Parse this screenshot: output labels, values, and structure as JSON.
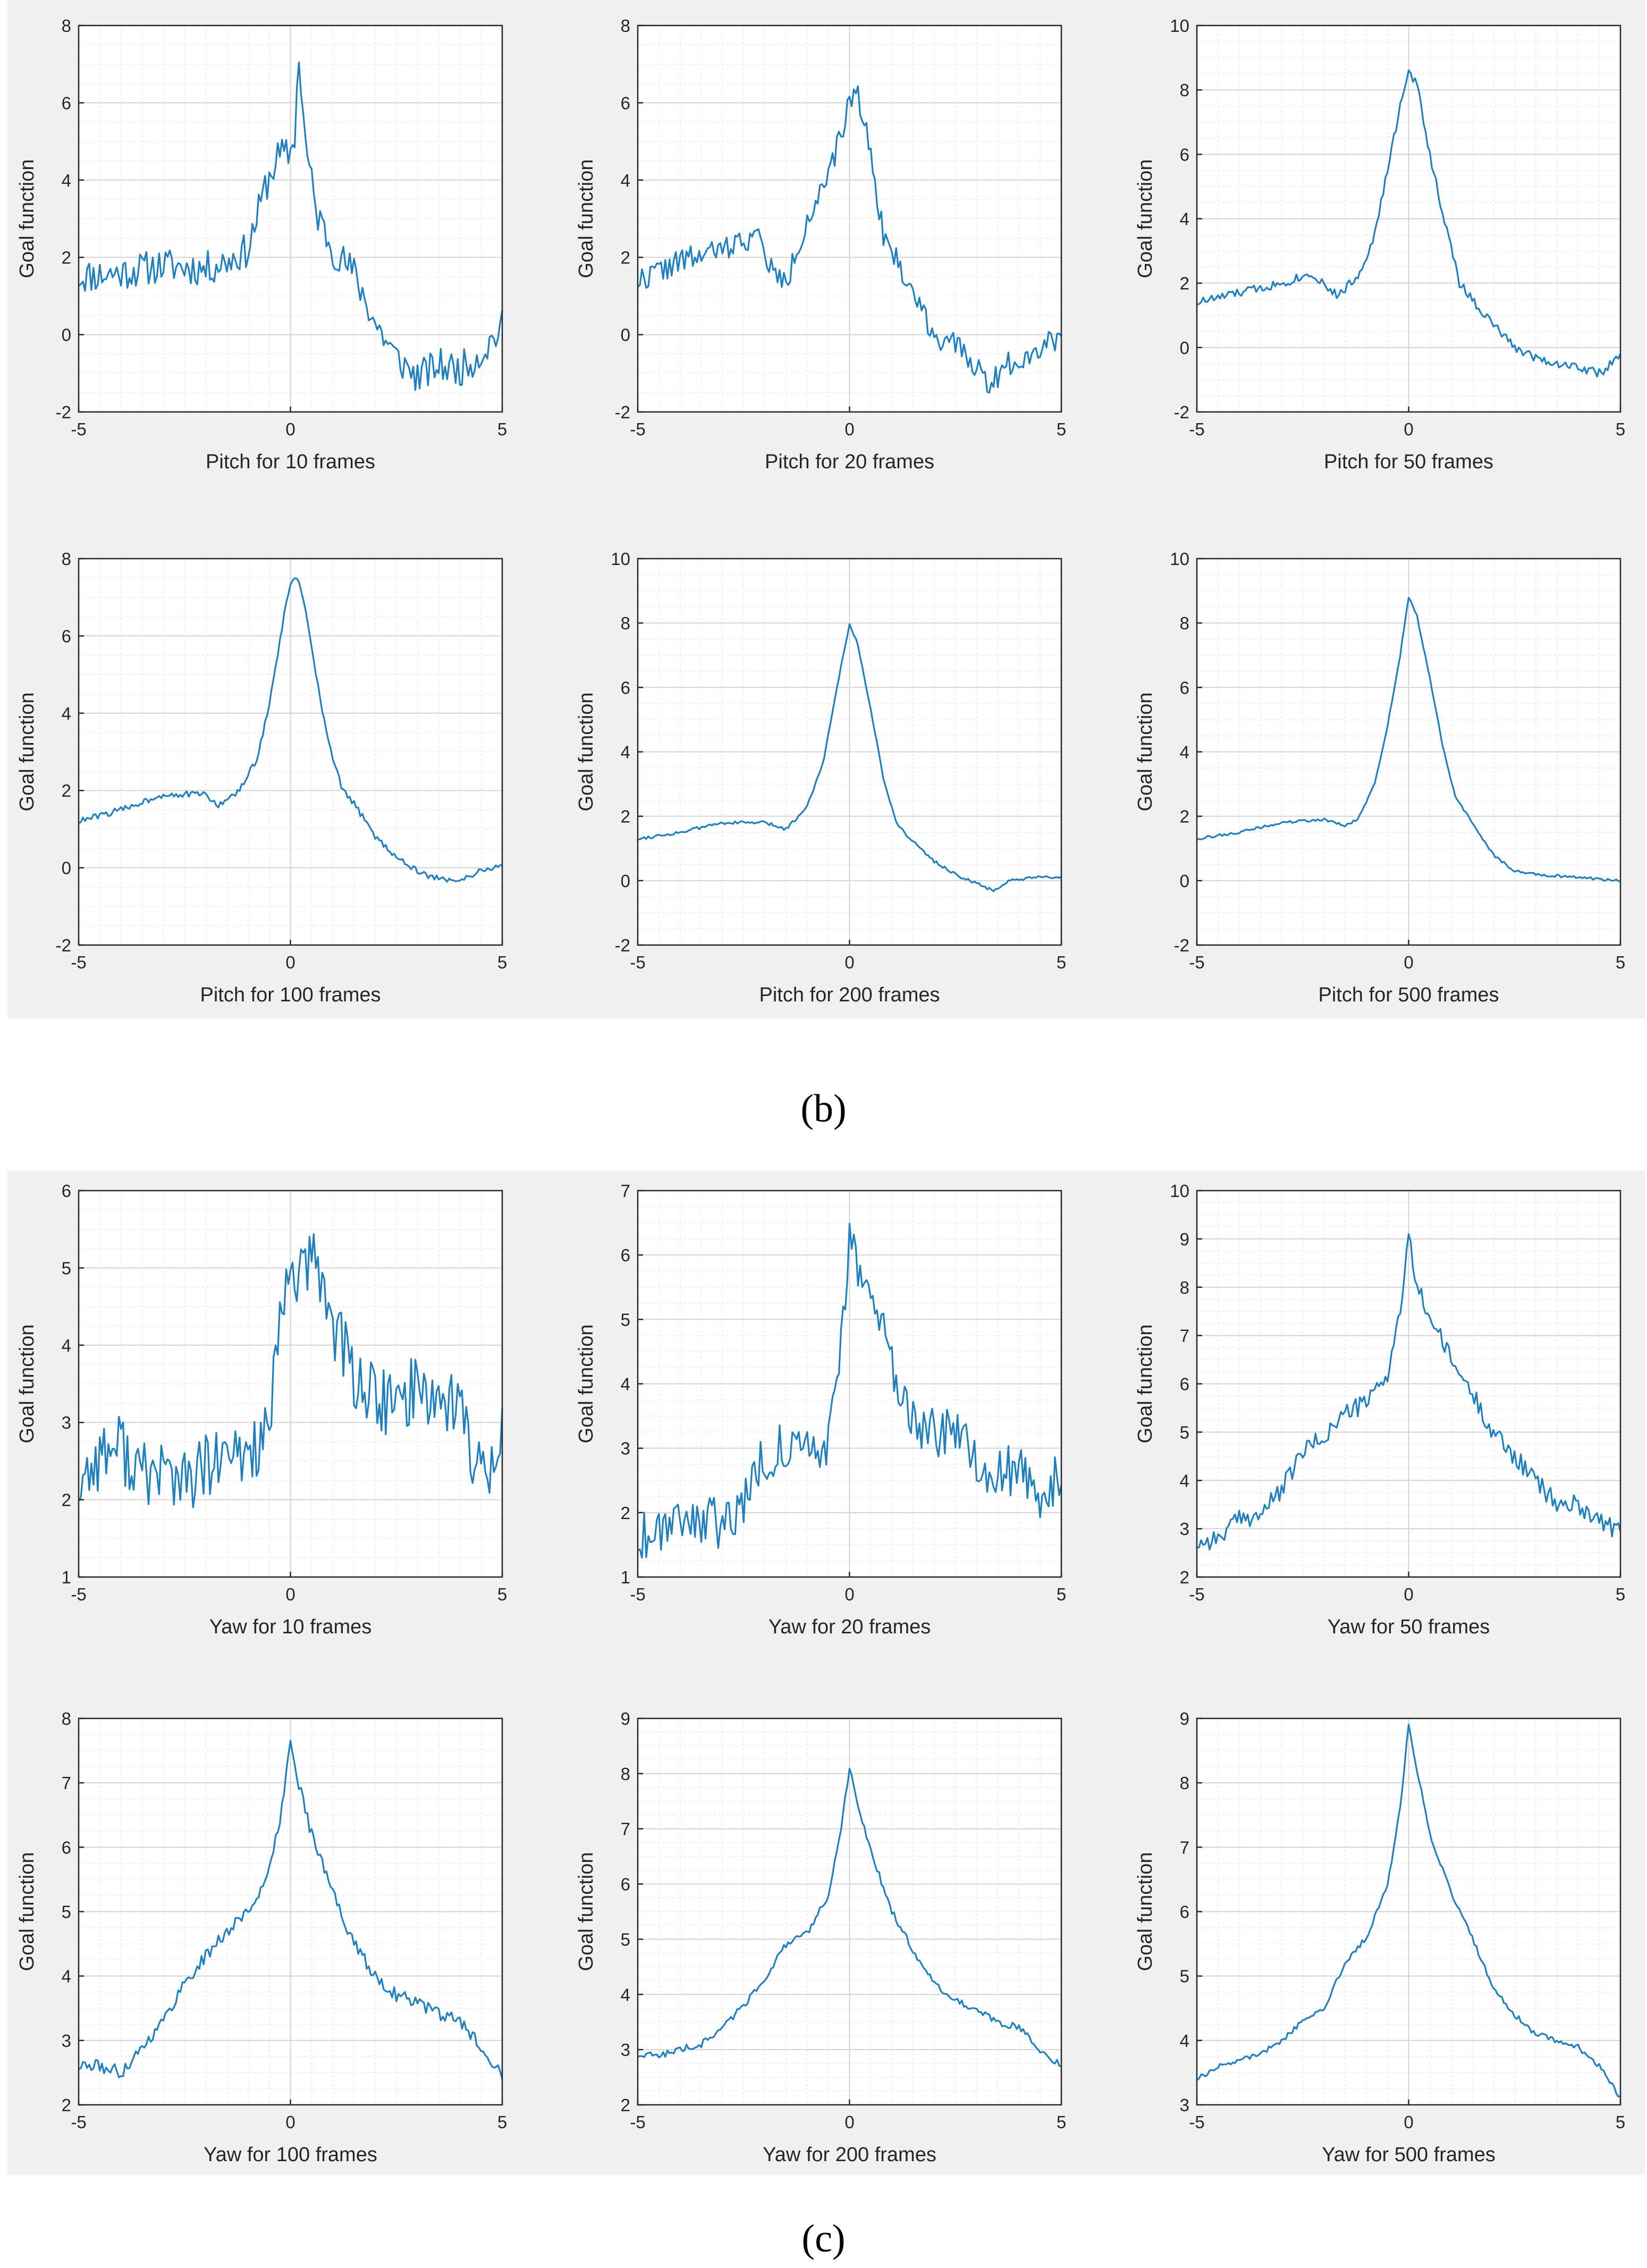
{
  "figure_labels": {
    "b": "(b)",
    "c": "(c)"
  },
  "colors": {
    "line": "#1f7fbf",
    "panel_bg": "#f0f0f0",
    "grid": "#d4d4d4",
    "axis": "#262626"
  },
  "chart_data": [
    {
      "type": "line",
      "panel": "b",
      "title": "",
      "xlabel": "Pitch for 10 frames",
      "ylabel": "Goal function",
      "xlim": [
        -5,
        5
      ],
      "ylim": [
        -2,
        8
      ],
      "xticks": [
        -5,
        0,
        5
      ],
      "yticks": [
        -2,
        0,
        2,
        4,
        6,
        8
      ],
      "grid": true,
      "noise": 0.45,
      "seed": 11,
      "anchors": [
        [
          -5,
          1.5
        ],
        [
          -4,
          1.6
        ],
        [
          -3,
          1.8
        ],
        [
          -2,
          1.7
        ],
        [
          -1.5,
          1.9
        ],
        [
          -1,
          2.2
        ],
        [
          -0.6,
          3.8
        ],
        [
          -0.3,
          4.6
        ],
        [
          0,
          4.7
        ],
        [
          0.1,
          5.2
        ],
        [
          0.2,
          7.2
        ],
        [
          0.35,
          5.0
        ],
        [
          0.6,
          3.2
        ],
        [
          1,
          2.2
        ],
        [
          1.5,
          1.6
        ],
        [
          2,
          0.3
        ],
        [
          2.5,
          -0.6
        ],
        [
          3,
          -1.1
        ],
        [
          3.5,
          -0.8
        ],
        [
          4,
          -0.9
        ],
        [
          4.5,
          -0.5
        ],
        [
          5,
          0.2
        ]
      ]
    },
    {
      "type": "line",
      "panel": "b",
      "title": "",
      "xlabel": "Pitch for 20 frames",
      "ylabel": "Goal function",
      "xlim": [
        -5,
        5
      ],
      "ylim": [
        -2,
        8
      ],
      "xticks": [
        -5,
        0,
        5
      ],
      "yticks": [
        -2,
        0,
        2,
        4,
        6,
        8
      ],
      "grid": true,
      "noise": 0.32,
      "seed": 22,
      "anchors": [
        [
          -5,
          1.4
        ],
        [
          -4,
          1.9
        ],
        [
          -3,
          2.2
        ],
        [
          -2.2,
          2.6
        ],
        [
          -1.8,
          1.6
        ],
        [
          -1.5,
          1.3
        ],
        [
          -1,
          3.0
        ],
        [
          -0.5,
          4.0
        ],
        [
          -0.2,
          5.2
        ],
        [
          0,
          6.0
        ],
        [
          0.15,
          6.4
        ],
        [
          0.3,
          5.8
        ],
        [
          0.6,
          4.0
        ],
        [
          0.8,
          2.6
        ],
        [
          1.2,
          1.7
        ],
        [
          1.6,
          0.9
        ],
        [
          2,
          0.0
        ],
        [
          2.5,
          -0.3
        ],
        [
          3,
          -0.8
        ],
        [
          3.3,
          -1.3
        ],
        [
          3.7,
          -0.8
        ],
        [
          4.2,
          -0.5
        ],
        [
          5,
          0.0
        ]
      ]
    },
    {
      "type": "line",
      "panel": "b",
      "title": "",
      "xlabel": "Pitch for 50 frames",
      "ylabel": "Goal function",
      "xlim": [
        -5,
        5
      ],
      "ylim": [
        -2,
        10
      ],
      "xticks": [
        -5,
        0,
        5
      ],
      "yticks": [
        -2,
        0,
        2,
        4,
        6,
        8,
        10
      ],
      "grid": true,
      "noise": 0.14,
      "seed": 33,
      "anchors": [
        [
          -5,
          1.4
        ],
        [
          -4,
          1.7
        ],
        [
          -3,
          2.0
        ],
        [
          -2.3,
          2.3
        ],
        [
          -2,
          2.0
        ],
        [
          -1.7,
          1.6
        ],
        [
          -1.2,
          2.2
        ],
        [
          -0.8,
          3.5
        ],
        [
          -0.5,
          5.5
        ],
        [
          -0.2,
          7.5
        ],
        [
          0,
          8.5
        ],
        [
          0.2,
          8.2
        ],
        [
          0.5,
          6.0
        ],
        [
          0.8,
          4.2
        ],
        [
          1.2,
          2.0
        ],
        [
          1.8,
          1.0
        ],
        [
          2.5,
          0.0
        ],
        [
          3,
          -0.3
        ],
        [
          3.5,
          -0.5
        ],
        [
          4,
          -0.6
        ],
        [
          4.5,
          -0.8
        ],
        [
          5,
          -0.3
        ]
      ]
    },
    {
      "type": "line",
      "panel": "b",
      "title": "",
      "xlabel": "Pitch for 100 frames",
      "ylabel": "Goal function",
      "xlim": [
        -5,
        5
      ],
      "ylim": [
        -2,
        8
      ],
      "xticks": [
        -5,
        0,
        5
      ],
      "yticks": [
        -2,
        0,
        2,
        4,
        6,
        8
      ],
      "grid": true,
      "noise": 0.08,
      "seed": 44,
      "anchors": [
        [
          -5,
          1.2
        ],
        [
          -4,
          1.5
        ],
        [
          -3,
          1.9
        ],
        [
          -2,
          1.9
        ],
        [
          -1.7,
          1.6
        ],
        [
          -1.2,
          2.0
        ],
        [
          -0.8,
          2.8
        ],
        [
          -0.5,
          4.2
        ],
        [
          -0.2,
          6.2
        ],
        [
          0,
          7.4
        ],
        [
          0.15,
          7.5
        ],
        [
          0.3,
          7.0
        ],
        [
          0.6,
          5.0
        ],
        [
          0.9,
          3.2
        ],
        [
          1.2,
          2.1
        ],
        [
          1.6,
          1.5
        ],
        [
          2,
          0.8
        ],
        [
          2.5,
          0.3
        ],
        [
          3,
          -0.1
        ],
        [
          3.5,
          -0.3
        ],
        [
          4,
          -0.3
        ],
        [
          4.5,
          -0.1
        ],
        [
          5,
          0.1
        ]
      ]
    },
    {
      "type": "line",
      "panel": "b",
      "title": "",
      "xlabel": "Pitch for 200 frames",
      "ylabel": "Goal function",
      "xlim": [
        -5,
        5
      ],
      "ylim": [
        -2,
        10
      ],
      "xticks": [
        -5,
        0,
        5
      ],
      "yticks": [
        -2,
        0,
        2,
        4,
        6,
        8,
        10
      ],
      "grid": true,
      "noise": 0.05,
      "seed": 55,
      "anchors": [
        [
          -5,
          1.3
        ],
        [
          -4,
          1.5
        ],
        [
          -3,
          1.8
        ],
        [
          -2,
          1.8
        ],
        [
          -1.5,
          1.6
        ],
        [
          -1,
          2.3
        ],
        [
          -0.6,
          3.8
        ],
        [
          -0.3,
          6.0
        ],
        [
          0,
          8.0
        ],
        [
          0.2,
          7.3
        ],
        [
          0.5,
          5.3
        ],
        [
          0.8,
          3.2
        ],
        [
          1.1,
          1.8
        ],
        [
          1.5,
          1.2
        ],
        [
          2,
          0.6
        ],
        [
          2.5,
          0.2
        ],
        [
          3,
          -0.1
        ],
        [
          3.4,
          -0.3
        ],
        [
          3.8,
          0.0
        ],
        [
          4.5,
          0.1
        ],
        [
          5,
          0.1
        ]
      ]
    },
    {
      "type": "line",
      "panel": "b",
      "title": "",
      "xlabel": "Pitch for 500 frames",
      "ylabel": "Goal function",
      "xlim": [
        -5,
        5
      ],
      "ylim": [
        -2,
        10
      ],
      "xticks": [
        -5,
        0,
        5
      ],
      "yticks": [
        -2,
        0,
        2,
        4,
        6,
        8,
        10
      ],
      "grid": true,
      "noise": 0.04,
      "seed": 66,
      "anchors": [
        [
          -5,
          1.3
        ],
        [
          -4,
          1.5
        ],
        [
          -3,
          1.8
        ],
        [
          -2,
          1.9
        ],
        [
          -1.5,
          1.7
        ],
        [
          -1.2,
          1.9
        ],
        [
          -0.8,
          3.0
        ],
        [
          -0.5,
          4.8
        ],
        [
          -0.2,
          7.0
        ],
        [
          0,
          8.8
        ],
        [
          0.2,
          8.2
        ],
        [
          0.5,
          6.3
        ],
        [
          0.8,
          4.2
        ],
        [
          1.1,
          2.6
        ],
        [
          1.6,
          1.6
        ],
        [
          2,
          0.8
        ],
        [
          2.5,
          0.3
        ],
        [
          3,
          0.2
        ],
        [
          4,
          0.1
        ],
        [
          5,
          0.0
        ]
      ]
    },
    {
      "type": "line",
      "panel": "c",
      "title": "",
      "xlabel": "Yaw for 10 frames",
      "ylabel": "Goal function",
      "xlim": [
        -5,
        5
      ],
      "ylim": [
        1,
        6
      ],
      "xticks": [
        -5,
        0,
        5
      ],
      "yticks": [
        1,
        2,
        3,
        4,
        5,
        6
      ],
      "grid": true,
      "noise": 0.45,
      "seed": 77,
      "anchors": [
        [
          -5,
          2.2
        ],
        [
          -4.5,
          2.6
        ],
        [
          -4,
          2.7
        ],
        [
          -3.5,
          2.3
        ],
        [
          -3,
          2.4
        ],
        [
          -2.5,
          2.2
        ],
        [
          -2,
          2.4
        ],
        [
          -1.5,
          2.5
        ],
        [
          -1,
          2.6
        ],
        [
          -0.5,
          2.9
        ],
        [
          -0.2,
          4.4
        ],
        [
          0,
          5.0
        ],
        [
          0.3,
          4.9
        ],
        [
          0.6,
          5.1
        ],
        [
          1,
          4.3
        ],
        [
          1.5,
          3.6
        ],
        [
          2,
          3.3
        ],
        [
          2.5,
          3.2
        ],
        [
          3,
          3.5
        ],
        [
          3.5,
          3.3
        ],
        [
          4,
          3.3
        ],
        [
          4.3,
          2.4
        ],
        [
          4.7,
          2.5
        ],
        [
          5,
          3.0
        ]
      ]
    },
    {
      "type": "line",
      "panel": "c",
      "title": "",
      "xlabel": "Yaw for 20 frames",
      "ylabel": "Goal function",
      "xlim": [
        -5,
        5
      ],
      "ylim": [
        1,
        7
      ],
      "xticks": [
        -5,
        0,
        5
      ],
      "yticks": [
        1,
        2,
        3,
        4,
        5,
        6,
        7
      ],
      "grid": true,
      "noise": 0.4,
      "seed": 88,
      "anchors": [
        [
          -5,
          1.6
        ],
        [
          -4,
          2.0
        ],
        [
          -3,
          1.8
        ],
        [
          -2.5,
          2.2
        ],
        [
          -2,
          2.9
        ],
        [
          -1.5,
          3.0
        ],
        [
          -1,
          2.9
        ],
        [
          -0.5,
          3.1
        ],
        [
          -0.2,
          4.5
        ],
        [
          0,
          6.4
        ],
        [
          0.3,
          5.6
        ],
        [
          0.6,
          5.2
        ],
        [
          1,
          4.2
        ],
        [
          1.5,
          3.5
        ],
        [
          2,
          3.2
        ],
        [
          2.5,
          3.2
        ],
        [
          3,
          2.8
        ],
        [
          3.5,
          2.6
        ],
        [
          4,
          2.7
        ],
        [
          4.5,
          2.0
        ],
        [
          5,
          2.7
        ]
      ]
    },
    {
      "type": "line",
      "panel": "c",
      "title": "",
      "xlabel": "Yaw for 50 frames",
      "ylabel": "Goal function",
      "xlim": [
        -5,
        5
      ],
      "ylim": [
        2,
        10
      ],
      "xticks": [
        -5,
        0,
        5
      ],
      "yticks": [
        2,
        3,
        4,
        5,
        6,
        7,
        8,
        9,
        10
      ],
      "grid": true,
      "noise": 0.2,
      "seed": 99,
      "anchors": [
        [
          -5,
          2.7
        ],
        [
          -4.5,
          2.8
        ],
        [
          -4,
          3.2
        ],
        [
          -3.5,
          3.3
        ],
        [
          -3,
          3.8
        ],
        [
          -2.5,
          4.6
        ],
        [
          -2,
          4.9
        ],
        [
          -1.5,
          5.4
        ],
        [
          -1,
          5.6
        ],
        [
          -0.5,
          6.2
        ],
        [
          -0.2,
          7.5
        ],
        [
          0,
          9.0
        ],
        [
          0.2,
          8.0
        ],
        [
          0.5,
          7.4
        ],
        [
          1,
          6.5
        ],
        [
          1.5,
          5.8
        ],
        [
          2,
          5.0
        ],
        [
          2.5,
          4.5
        ],
        [
          3,
          4.0
        ],
        [
          3.5,
          3.5
        ],
        [
          4,
          3.5
        ],
        [
          4.5,
          3.2
        ],
        [
          5,
          2.9
        ]
      ]
    },
    {
      "type": "line",
      "panel": "c",
      "title": "",
      "xlabel": "Yaw for 100 frames",
      "ylabel": "Goal function",
      "xlim": [
        -5,
        5
      ],
      "ylim": [
        2,
        8
      ],
      "xticks": [
        -5,
        0,
        5
      ],
      "yticks": [
        2,
        3,
        4,
        5,
        6,
        7,
        8
      ],
      "grid": true,
      "noise": 0.1,
      "seed": 111,
      "anchors": [
        [
          -5,
          2.6
        ],
        [
          -4.5,
          2.6
        ],
        [
          -4,
          2.5
        ],
        [
          -3.5,
          2.9
        ],
        [
          -3,
          3.3
        ],
        [
          -2.5,
          3.9
        ],
        [
          -2,
          4.3
        ],
        [
          -1.5,
          4.7
        ],
        [
          -1,
          5.0
        ],
        [
          -0.5,
          5.6
        ],
        [
          -0.2,
          6.6
        ],
        [
          0,
          7.7
        ],
        [
          0.2,
          7.0
        ],
        [
          0.5,
          6.2
        ],
        [
          1,
          5.3
        ],
        [
          1.5,
          4.5
        ],
        [
          2,
          4.0
        ],
        [
          2.5,
          3.7
        ],
        [
          3,
          3.6
        ],
        [
          3.5,
          3.4
        ],
        [
          4,
          3.3
        ],
        [
          4.5,
          2.9
        ],
        [
          5,
          2.5
        ]
      ]
    },
    {
      "type": "line",
      "panel": "c",
      "title": "",
      "xlabel": "Yaw for 200 frames",
      "ylabel": "Goal function",
      "xlim": [
        -5,
        5
      ],
      "ylim": [
        2,
        9
      ],
      "xticks": [
        -5,
        0,
        5
      ],
      "yticks": [
        2,
        3,
        4,
        5,
        6,
        7,
        8,
        9
      ],
      "grid": true,
      "noise": 0.06,
      "seed": 122,
      "anchors": [
        [
          -5,
          2.9
        ],
        [
          -4.5,
          2.9
        ],
        [
          -4,
          3.0
        ],
        [
          -3.5,
          3.1
        ],
        [
          -3,
          3.4
        ],
        [
          -2.5,
          3.8
        ],
        [
          -2,
          4.3
        ],
        [
          -1.5,
          4.9
        ],
        [
          -1,
          5.1
        ],
        [
          -0.5,
          5.8
        ],
        [
          -0.2,
          7.0
        ],
        [
          0,
          8.1
        ],
        [
          0.2,
          7.4
        ],
        [
          0.5,
          6.6
        ],
        [
          1,
          5.5
        ],
        [
          1.5,
          4.8
        ],
        [
          2,
          4.2
        ],
        [
          2.5,
          3.9
        ],
        [
          3,
          3.7
        ],
        [
          3.5,
          3.5
        ],
        [
          4,
          3.4
        ],
        [
          4.5,
          3.0
        ],
        [
          5,
          2.7
        ]
      ]
    },
    {
      "type": "line",
      "panel": "c",
      "title": "",
      "xlabel": "Yaw for 500 frames",
      "ylabel": "Goal function",
      "xlim": [
        -5,
        5
      ],
      "ylim": [
        3,
        9
      ],
      "xticks": [
        -5,
        0,
        5
      ],
      "yticks": [
        3,
        4,
        5,
        6,
        7,
        8,
        9
      ],
      "grid": true,
      "noise": 0.04,
      "seed": 133,
      "anchors": [
        [
          -5,
          3.4
        ],
        [
          -4.5,
          3.6
        ],
        [
          -4,
          3.7
        ],
        [
          -3.5,
          3.8
        ],
        [
          -3,
          4.0
        ],
        [
          -2.5,
          4.3
        ],
        [
          -2,
          4.5
        ],
        [
          -1.5,
          5.2
        ],
        [
          -1,
          5.6
        ],
        [
          -0.5,
          6.4
        ],
        [
          -0.2,
          7.6
        ],
        [
          0,
          8.9
        ],
        [
          0.2,
          8.2
        ],
        [
          0.5,
          7.2
        ],
        [
          1,
          6.3
        ],
        [
          1.5,
          5.6
        ],
        [
          2,
          4.8
        ],
        [
          2.5,
          4.4
        ],
        [
          3,
          4.1
        ],
        [
          3.5,
          4.0
        ],
        [
          4,
          3.9
        ],
        [
          4.5,
          3.6
        ],
        [
          5,
          3.1
        ]
      ]
    }
  ]
}
